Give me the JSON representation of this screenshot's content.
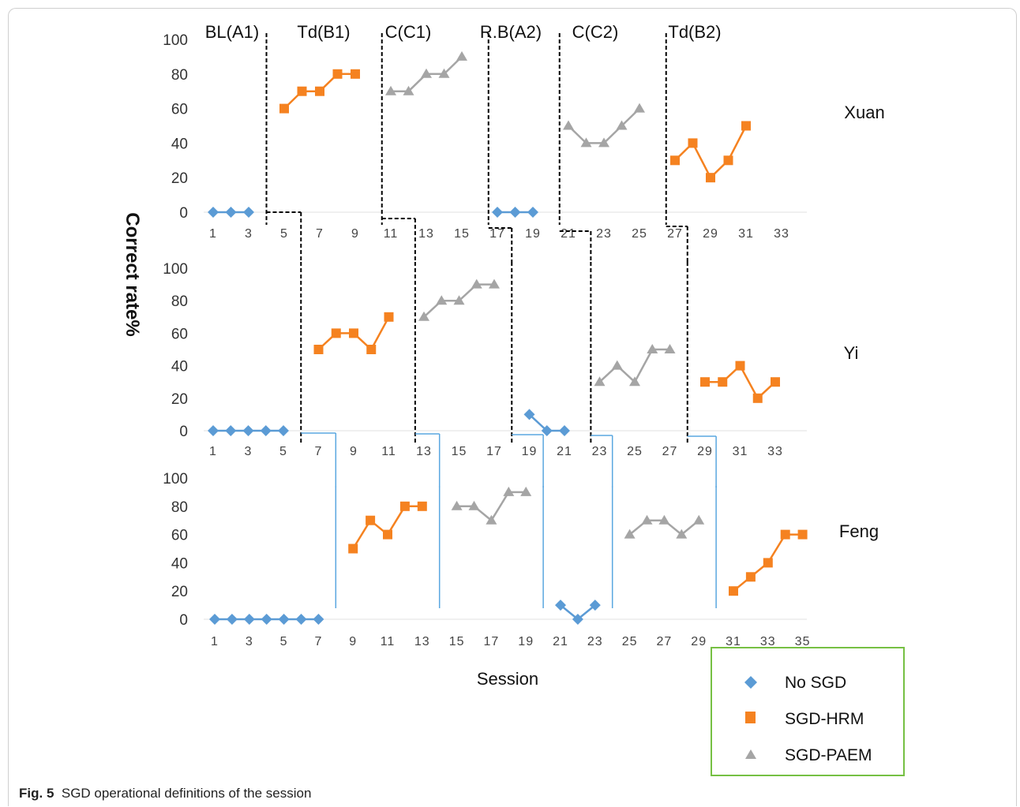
{
  "caption": {
    "label": "Fig. 5",
    "text": "SGD operational definitions of the session"
  },
  "colors": {
    "no_sgd": "#5b9bd5",
    "hrm": "#f58220",
    "paem": "#a5a5a5",
    "legend_border": "#76c043",
    "phase_line": "#000000",
    "lower_line": "#5aa7e0"
  },
  "chart_data": {
    "type": "line",
    "ylabel": "Correct rate%",
    "xlabel": "Session",
    "ylim": [
      0,
      100
    ],
    "yticks": [
      0,
      20,
      40,
      60,
      80,
      100
    ],
    "phase_labels": [
      "BL(A1)",
      "Td(B1)",
      "C(C1)",
      "R.B(A2)",
      "C(C2)",
      "Td(B2)"
    ],
    "legend": [
      {
        "key": "no_sgd",
        "label": "No SGD",
        "marker": "diamond-icon"
      },
      {
        "key": "hrm",
        "label": "SGD-HRM",
        "marker": "square-icon"
      },
      {
        "key": "paem",
        "label": "SGD-PAEM",
        "marker": "triangle-icon"
      }
    ],
    "panels": [
      {
        "participant": "Xuan",
        "xlim": [
          1,
          34
        ],
        "xticks": [
          1,
          3,
          5,
          7,
          9,
          11,
          13,
          15,
          17,
          19,
          21,
          23,
          25,
          27,
          29,
          31,
          33
        ],
        "phase_changes": [
          4,
          10.5,
          16.5,
          20.5,
          26.5
        ],
        "segments": [
          {
            "series": "no_sgd",
            "points": [
              [
                1,
                0
              ],
              [
                2,
                0
              ],
              [
                3,
                0
              ]
            ]
          },
          {
            "series": "hrm",
            "points": [
              [
                5,
                60
              ],
              [
                6,
                70
              ],
              [
                7,
                70
              ],
              [
                8,
                80
              ],
              [
                9,
                80
              ]
            ]
          },
          {
            "series": "paem",
            "points": [
              [
                11,
                70
              ],
              [
                12,
                70
              ],
              [
                13,
                80
              ],
              [
                14,
                80
              ],
              [
                15,
                90
              ]
            ]
          },
          {
            "series": "no_sgd",
            "points": [
              [
                17,
                0
              ],
              [
                18,
                0
              ],
              [
                19,
                0
              ]
            ]
          },
          {
            "series": "paem",
            "points": [
              [
                21,
                50
              ],
              [
                22,
                40
              ],
              [
                23,
                40
              ],
              [
                24,
                50
              ],
              [
                25,
                60
              ]
            ]
          },
          {
            "series": "hrm",
            "points": [
              [
                27,
                30
              ],
              [
                28,
                40
              ],
              [
                29,
                20
              ],
              [
                30,
                30
              ],
              [
                31,
                50
              ]
            ]
          }
        ]
      },
      {
        "participant": "Yi",
        "xlim": [
          1,
          34
        ],
        "xticks": [
          1,
          3,
          5,
          7,
          9,
          11,
          13,
          15,
          17,
          19,
          21,
          23,
          25,
          27,
          29,
          31,
          33
        ],
        "phase_changes": [
          6,
          12.5,
          18,
          22.5,
          28
        ],
        "segments": [
          {
            "series": "no_sgd",
            "points": [
              [
                1,
                0
              ],
              [
                2,
                0
              ],
              [
                3,
                0
              ],
              [
                4,
                0
              ],
              [
                5,
                0
              ]
            ]
          },
          {
            "series": "hrm",
            "points": [
              [
                7,
                50
              ],
              [
                8,
                60
              ],
              [
                9,
                60
              ],
              [
                10,
                50
              ],
              [
                11,
                70
              ]
            ]
          },
          {
            "series": "paem",
            "points": [
              [
                13,
                70
              ],
              [
                14,
                80
              ],
              [
                15,
                80
              ],
              [
                16,
                90
              ],
              [
                17,
                90
              ]
            ]
          },
          {
            "series": "no_sgd",
            "points": [
              [
                19,
                10
              ],
              [
                20,
                0
              ],
              [
                21,
                0
              ]
            ]
          },
          {
            "series": "paem",
            "points": [
              [
                23,
                30
              ],
              [
                24,
                40
              ],
              [
                25,
                30
              ],
              [
                26,
                50
              ],
              [
                27,
                50
              ]
            ]
          },
          {
            "series": "hrm",
            "points": [
              [
                29,
                30
              ],
              [
                30,
                30
              ],
              [
                31,
                40
              ],
              [
                32,
                20
              ],
              [
                33,
                30
              ]
            ]
          }
        ]
      },
      {
        "participant": "Feng",
        "xlim": [
          1,
          35
        ],
        "xticks": [
          1,
          3,
          5,
          7,
          9,
          11,
          13,
          15,
          17,
          19,
          21,
          23,
          25,
          27,
          29,
          31,
          33,
          35
        ],
        "phase_changes": [
          8,
          14,
          20,
          24,
          30
        ],
        "segments": [
          {
            "series": "no_sgd",
            "points": [
              [
                1,
                0
              ],
              [
                2,
                0
              ],
              [
                3,
                0
              ],
              [
                4,
                0
              ],
              [
                5,
                0
              ],
              [
                6,
                0
              ],
              [
                7,
                0
              ]
            ]
          },
          {
            "series": "hrm",
            "points": [
              [
                9,
                50
              ],
              [
                10,
                70
              ],
              [
                11,
                60
              ],
              [
                12,
                80
              ],
              [
                13,
                80
              ]
            ]
          },
          {
            "series": "paem",
            "points": [
              [
                15,
                80
              ],
              [
                16,
                80
              ],
              [
                17,
                70
              ],
              [
                18,
                90
              ],
              [
                19,
                90
              ]
            ]
          },
          {
            "series": "no_sgd",
            "points": [
              [
                21,
                10
              ],
              [
                22,
                0
              ],
              [
                23,
                10
              ]
            ]
          },
          {
            "series": "paem",
            "points": [
              [
                25,
                60
              ],
              [
                26,
                70
              ],
              [
                27,
                70
              ],
              [
                28,
                60
              ],
              [
                29,
                70
              ]
            ]
          },
          {
            "series": "hrm",
            "points": [
              [
                31,
                20
              ],
              [
                32,
                30
              ],
              [
                33,
                40
              ],
              [
                34,
                60
              ],
              [
                35,
                60
              ]
            ]
          }
        ]
      }
    ]
  }
}
